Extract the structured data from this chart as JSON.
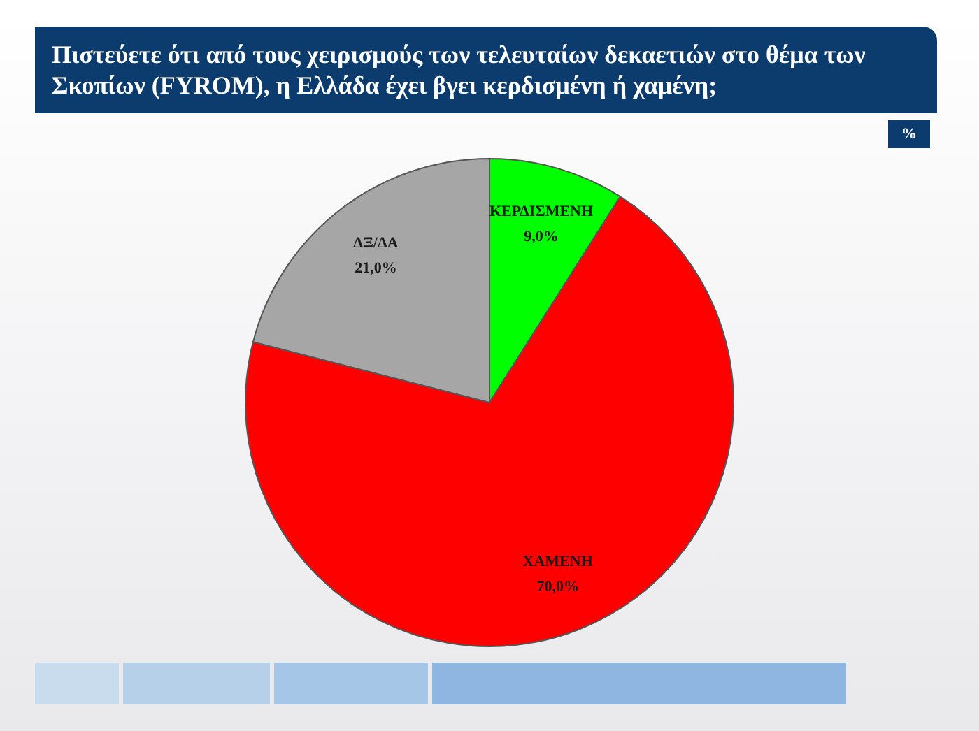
{
  "chart_data": {
    "type": "pie",
    "title": "Πιστεύετε  ότι από τους χειρισμούς των τελευταίων δεκαετιών στο θέμα των Σκοπίων (FYROM), η Ελλάδα έχει βγει κερδισμένη ή χαμένη;",
    "subtitle": "%",
    "categories": [
      "ΚΕΡΔΙΣΜΕΝΗ",
      "ΧΑΜΕΝΗ",
      "ΔΞ/ΔΑ"
    ],
    "values": [
      9.0,
      70.0,
      21.0
    ],
    "value_labels": [
      "9,0%",
      "70,0%",
      "21,0%"
    ],
    "colors": [
      "#00ff00",
      "#ff0000",
      "#a6a6a6"
    ],
    "legend": false
  }
}
